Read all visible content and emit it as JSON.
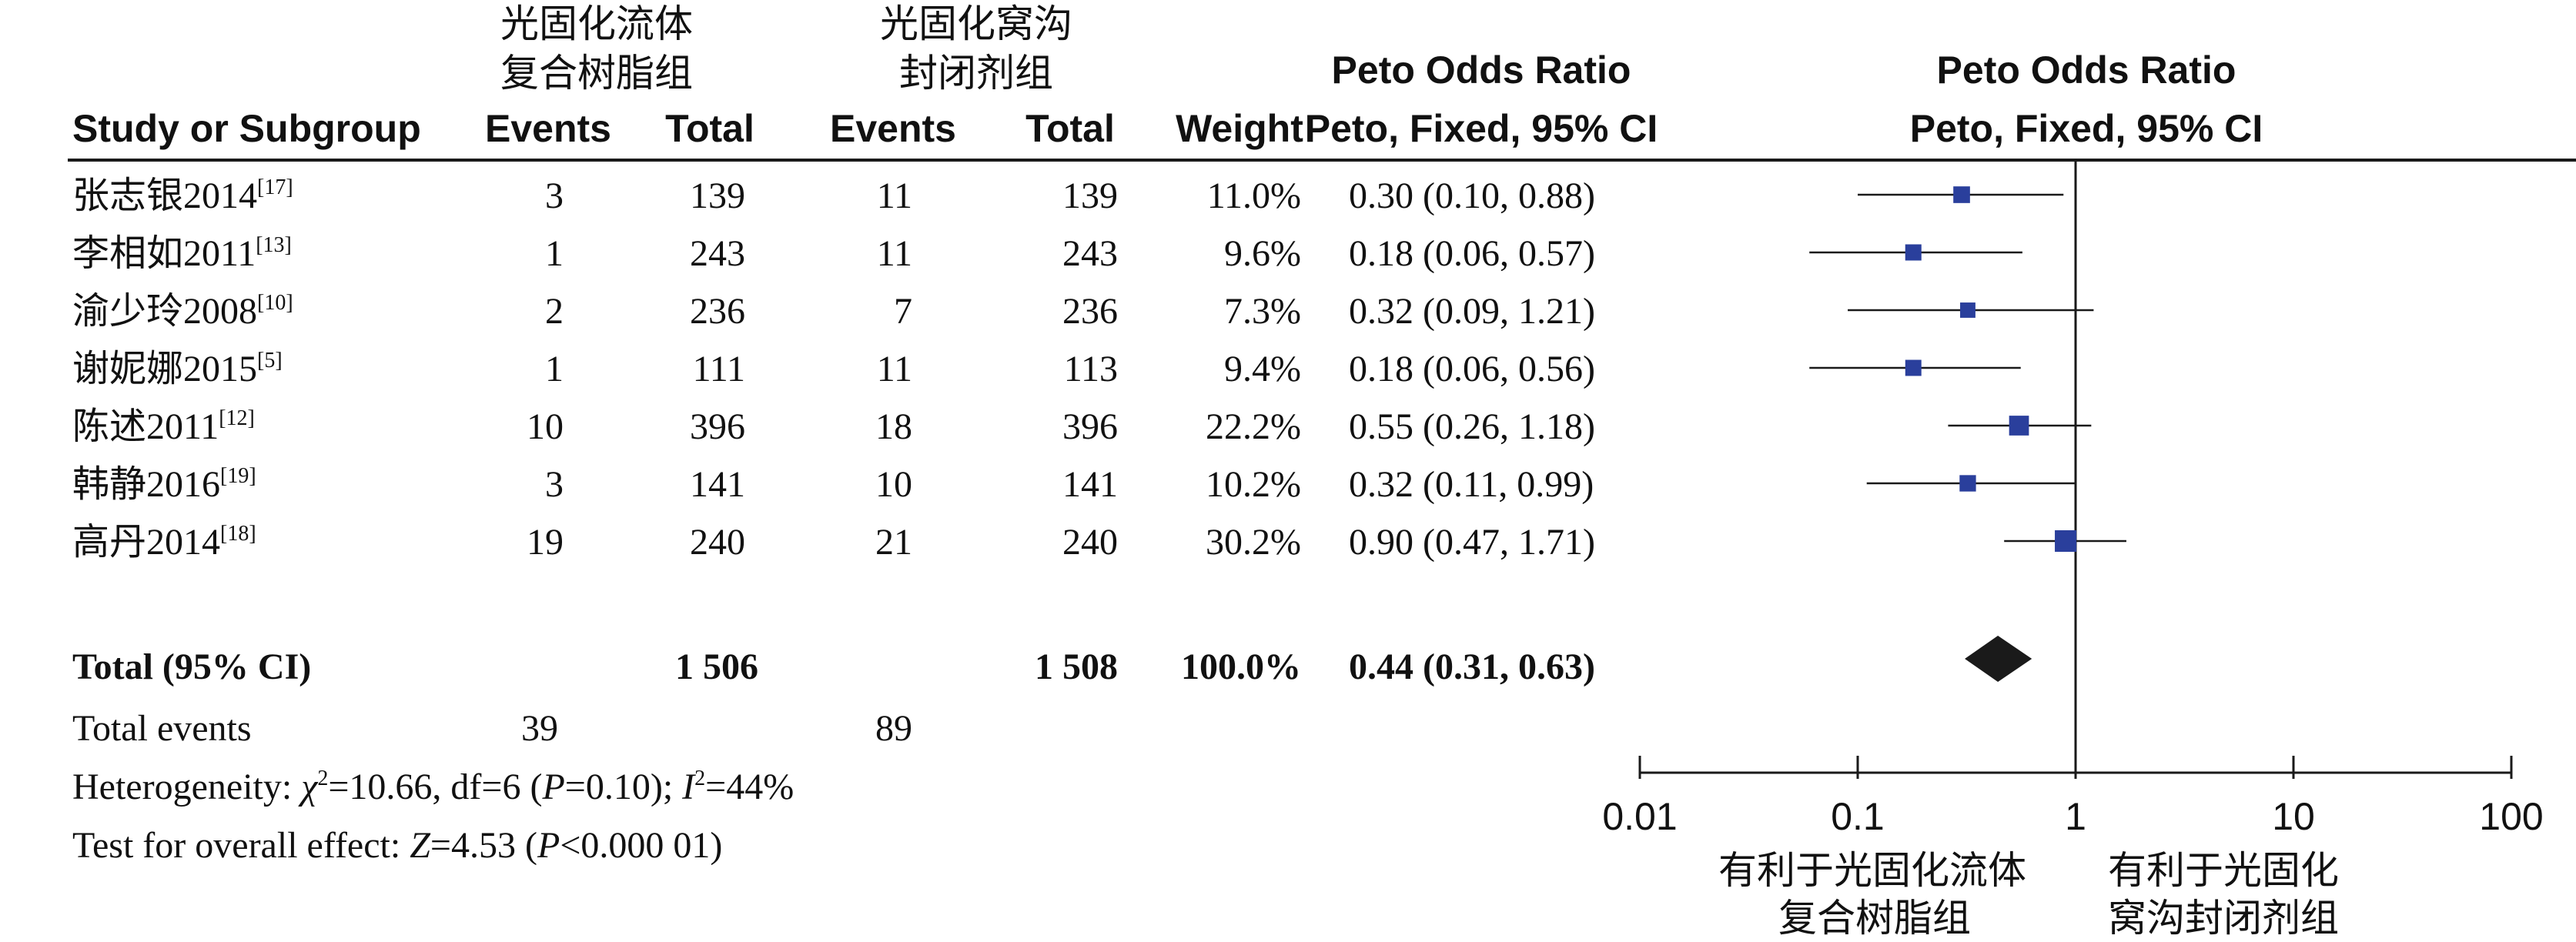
{
  "headers": {
    "group1_line1": "光固化流体",
    "group1_line2": "复合树脂组",
    "group2_line1": "光固化窝沟",
    "group2_line2": "封闭剂组",
    "study": "Study or Subgroup",
    "events1": "Events",
    "total1": "Total",
    "events2": "Events",
    "total2": "Total",
    "weight": "Weight",
    "or_title": "Peto Odds Ratio",
    "or_method": "Peto, Fixed, 95% CI",
    "plot_title": "Peto Odds Ratio",
    "plot_method": "Peto, Fixed, 95% CI"
  },
  "studies": [
    {
      "name": "张志银2014",
      "ref": "[17]",
      "events1": "3",
      "total1": "139",
      "events2": "11",
      "total2": "139",
      "weight": "11.0%",
      "ci_text": "0.30 (0.10, 0.88)"
    },
    {
      "name": "李相如2011",
      "ref": "[13]",
      "events1": "1",
      "total1": "243",
      "events2": "11",
      "total2": "243",
      "weight": "9.6%",
      "ci_text": "0.18 (0.06, 0.57)"
    },
    {
      "name": "渝少玲2008",
      "ref": "[10]",
      "events1": "2",
      "total1": "236",
      "events2": "7",
      "total2": "236",
      "weight": "7.3%",
      "ci_text": "0.32 (0.09, 1.21)"
    },
    {
      "name": "谢妮娜2015",
      "ref": "[5]",
      "events1": "1",
      "total1": "111",
      "events2": "11",
      "total2": "113",
      "weight": "9.4%",
      "ci_text": "0.18 (0.06, 0.56)"
    },
    {
      "name": "陈述2011",
      "ref": "[12]",
      "events1": "10",
      "total1": "396",
      "events2": "18",
      "total2": "396",
      "weight": "22.2%",
      "ci_text": "0.55 (0.26, 1.18)"
    },
    {
      "name": "韩静2016",
      "ref": "[19]",
      "events1": "3",
      "total1": "141",
      "events2": "10",
      "total2": "141",
      "weight": "10.2%",
      "ci_text": "0.32 (0.11, 0.99)"
    },
    {
      "name": "高丹2014",
      "ref": "[18]",
      "events1": "19",
      "total1": "240",
      "events2": "21",
      "total2": "240",
      "weight": "30.2%",
      "ci_text": "0.90 (0.47, 1.71)"
    }
  ],
  "total": {
    "label": "Total (95% CI)",
    "total1": "1 506",
    "total2": "1 508",
    "weight": "100.0%",
    "ci_text": "0.44 (0.31, 0.63)"
  },
  "total_events": {
    "label": "Total events",
    "events1": "39",
    "events2": "89"
  },
  "heterogeneity": {
    "prefix": "Heterogeneity: ",
    "chi": "χ",
    "chi_rest": "=10.66, df=6 (",
    "p": "P",
    "p_rest": "=0.10); ",
    "i": "I",
    "i_rest": "=44%"
  },
  "overall": {
    "prefix": "Test for overall effect: ",
    "z": "Z",
    "z_rest": "=4.53 (",
    "p": "P",
    "p_rest": "<0.000 01)"
  },
  "favours_left_line1": "有利于光固化流体",
  "favours_left_line2": "复合树脂组",
  "favours_right_line1": "有利于光固化",
  "favours_right_line2": "窝沟封闭剂组",
  "colors": {
    "marker": "#2a3f9c",
    "diamond": "#1a1a1a",
    "line": "#1a1a1a"
  },
  "chart_data": {
    "type": "forest",
    "scale": "log",
    "xlim": [
      0.01,
      100
    ],
    "x_ticks": [
      0.01,
      0.1,
      1,
      10,
      100
    ],
    "x_tick_labels": [
      "0.01",
      "0.1",
      "1",
      "10",
      "100"
    ],
    "reference_line": 1,
    "points": [
      {
        "or": 0.3,
        "lo": 0.1,
        "hi": 0.88,
        "weight": 11.0
      },
      {
        "or": 0.18,
        "lo": 0.06,
        "hi": 0.57,
        "weight": 9.6
      },
      {
        "or": 0.32,
        "lo": 0.09,
        "hi": 1.21,
        "weight": 7.3
      },
      {
        "or": 0.18,
        "lo": 0.06,
        "hi": 0.56,
        "weight": 9.4
      },
      {
        "or": 0.55,
        "lo": 0.26,
        "hi": 1.18,
        "weight": 22.2
      },
      {
        "or": 0.32,
        "lo": 0.11,
        "hi": 0.99,
        "weight": 10.2
      },
      {
        "or": 0.9,
        "lo": 0.47,
        "hi": 1.71,
        "weight": 30.2
      }
    ],
    "summary": {
      "or": 0.44,
      "lo": 0.31,
      "hi": 0.63
    }
  }
}
